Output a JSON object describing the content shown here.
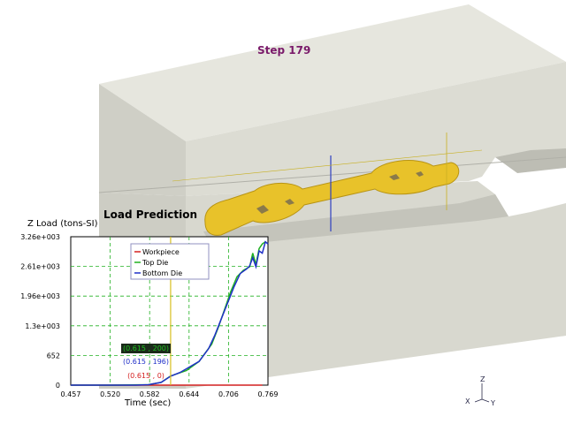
{
  "viewport": {
    "step_label": "Step  179",
    "die_color": "#d9d9cf",
    "workpiece_color": "#e8c22a"
  },
  "load_panel": {
    "title": "Load Prediction",
    "ylabel": "Z Load (tons-SI)",
    "xlabel": "Time (sec)"
  },
  "chart_data": {
    "type": "line",
    "title": "Load Prediction",
    "xlabel": "Time (sec)",
    "ylabel": "Z Load (tons-SI)",
    "xlim": [
      0.457,
      0.769
    ],
    "ylim": [
      0,
      3260
    ],
    "x_ticks": [
      "0.457",
      "0.520",
      "0.582",
      "0.644",
      "0.706",
      "0.769"
    ],
    "y_ticks": [
      "0",
      "652",
      "1.3e+003",
      "1.96e+003",
      "2.61e+003",
      "3.26e+003"
    ],
    "grid": true,
    "legend_position": "top-left",
    "cursor_x": 0.615,
    "series": [
      {
        "name": "Workpiece",
        "color": "#d42020",
        "points": [
          [
            0.457,
            0
          ],
          [
            0.52,
            0
          ],
          [
            0.58,
            0
          ],
          [
            0.615,
            0
          ],
          [
            0.66,
            0
          ],
          [
            0.72,
            0
          ],
          [
            0.76,
            0
          ]
        ]
      },
      {
        "name": "Top Die",
        "color": "#20b020",
        "points": [
          [
            0.457,
            0
          ],
          [
            0.52,
            0
          ],
          [
            0.58,
            10
          ],
          [
            0.6,
            60
          ],
          [
            0.615,
            200
          ],
          [
            0.64,
            320
          ],
          [
            0.66,
            520
          ],
          [
            0.68,
            900
          ],
          [
            0.69,
            1250
          ],
          [
            0.7,
            1650
          ],
          [
            0.71,
            2050
          ],
          [
            0.72,
            2380
          ],
          [
            0.73,
            2520
          ],
          [
            0.74,
            2600
          ],
          [
            0.745,
            2900
          ],
          [
            0.75,
            2650
          ],
          [
            0.755,
            3000
          ],
          [
            0.76,
            3100
          ],
          [
            0.765,
            3150
          ]
        ]
      },
      {
        "name": "Bottom Die",
        "color": "#2030c8",
        "points": [
          [
            0.457,
            0
          ],
          [
            0.52,
            0
          ],
          [
            0.56,
            0
          ],
          [
            0.58,
            10
          ],
          [
            0.6,
            60
          ],
          [
            0.615,
            196
          ],
          [
            0.63,
            280
          ],
          [
            0.645,
            400
          ],
          [
            0.66,
            520
          ],
          [
            0.675,
            800
          ],
          [
            0.685,
            1100
          ],
          [
            0.695,
            1450
          ],
          [
            0.705,
            1800
          ],
          [
            0.715,
            2150
          ],
          [
            0.725,
            2450
          ],
          [
            0.735,
            2550
          ],
          [
            0.74,
            2620
          ],
          [
            0.745,
            2800
          ],
          [
            0.75,
            2600
          ],
          [
            0.755,
            2950
          ],
          [
            0.76,
            2900
          ],
          [
            0.765,
            3150
          ],
          [
            0.769,
            3100
          ]
        ]
      }
    ],
    "annotations": [
      {
        "text": "(0.615 , 200)",
        "color": "#20c020",
        "boxed": true
      },
      {
        "text": "(0.615 , 196)",
        "color": "#2030c8",
        "boxed": false
      },
      {
        "text": "(0.615 , 0)",
        "color": "#d42020",
        "boxed": false
      }
    ]
  },
  "axis_triad": {
    "z": "Z",
    "x": "X",
    "y": "Y"
  }
}
